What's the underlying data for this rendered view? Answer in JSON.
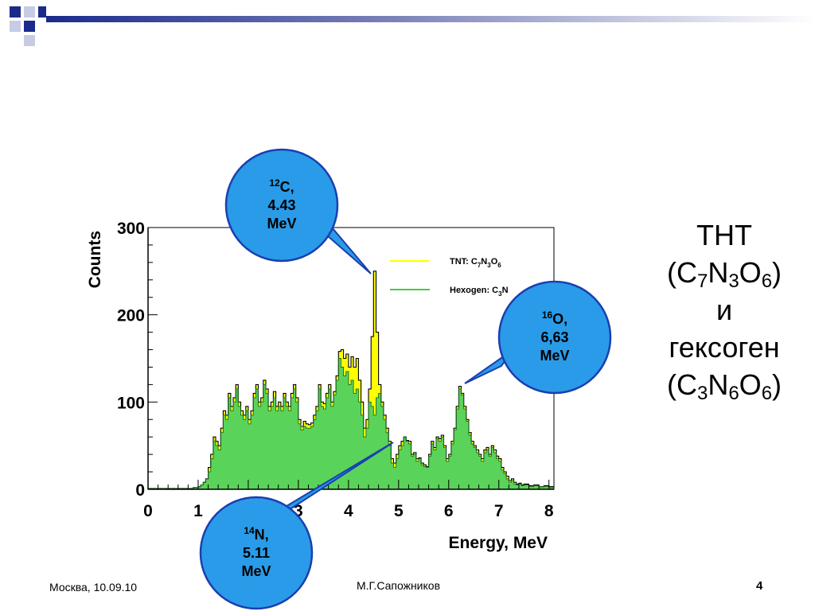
{
  "slide": {
    "heading": {
      "line1": "ТНТ",
      "line2_parts": [
        "(C",
        "7",
        "N",
        "3",
        "O",
        "6",
        ")"
      ],
      "line3": "и",
      "line4": "гексоген",
      "line5_parts": [
        "(C",
        "3",
        "N",
        "6",
        "O",
        "6",
        ")"
      ]
    },
    "footer": {
      "location_date": "Москва, 10.09.10",
      "author": "М.Г.Сапожников",
      "page_number": "4"
    },
    "callouts": [
      {
        "iso": "12",
        "element": "C,",
        "energy": "4.43",
        "unit": "MeV"
      },
      {
        "iso": "16",
        "element": "O,",
        "energy": "6,63",
        "unit": "MeV"
      },
      {
        "iso": "14",
        "element": "N,",
        "energy": "5.11",
        "unit": "MeV"
      }
    ],
    "colors": {
      "bubble_fill": "#2a9be8",
      "bubble_stroke": "#1a3fb0",
      "tnt_line": "#ffff00",
      "hexogen_fill": "#5ad35a",
      "hexogen_line": "#44cc44",
      "deco_navy": "#1a2b8c"
    }
  },
  "chart_data": {
    "type": "area",
    "xlabel": "Energy, MeV",
    "ylabel": "Counts",
    "xlim": [
      0,
      8.1
    ],
    "ylim": [
      0,
      300
    ],
    "xticks": [
      0,
      1,
      2,
      3,
      4,
      5,
      6,
      7,
      8
    ],
    "yticks": [
      0,
      100,
      200,
      300
    ],
    "grid": false,
    "legend_position": "top-right",
    "series": [
      {
        "name": "TNT: C7N3O6",
        "legend_label": "TNT: C",
        "legend_subs": [
          "7",
          "N",
          "3",
          "O",
          "6"
        ],
        "color": "#ffff00",
        "x": [
          0,
          0.5,
          0.9,
          1.0,
          1.05,
          1.1,
          1.15,
          1.2,
          1.25,
          1.3,
          1.35,
          1.4,
          1.45,
          1.5,
          1.55,
          1.6,
          1.65,
          1.7,
          1.75,
          1.8,
          1.85,
          1.9,
          1.95,
          2.0,
          2.05,
          2.1,
          2.15,
          2.2,
          2.25,
          2.3,
          2.35,
          2.4,
          2.45,
          2.5,
          2.55,
          2.6,
          2.65,
          2.7,
          2.75,
          2.8,
          2.85,
          2.9,
          2.95,
          3.0,
          3.05,
          3.1,
          3.15,
          3.2,
          3.25,
          3.3,
          3.35,
          3.4,
          3.45,
          3.5,
          3.55,
          3.6,
          3.65,
          3.7,
          3.75,
          3.8,
          3.85,
          3.9,
          3.95,
          4.0,
          4.05,
          4.1,
          4.15,
          4.2,
          4.25,
          4.3,
          4.35,
          4.4,
          4.45,
          4.5,
          4.55,
          4.6,
          4.65,
          4.7,
          4.75,
          4.8,
          4.85,
          4.9,
          4.95,
          5.0,
          5.05,
          5.1,
          5.15,
          5.2,
          5.25,
          5.3,
          5.35,
          5.4,
          5.45,
          5.5,
          5.55,
          5.6,
          5.65,
          5.7,
          5.75,
          5.8,
          5.85,
          5.9,
          5.95,
          6.0,
          6.05,
          6.1,
          6.15,
          6.2,
          6.25,
          6.3,
          6.35,
          6.4,
          6.45,
          6.5,
          6.55,
          6.6,
          6.65,
          6.7,
          6.75,
          6.8,
          6.85,
          6.9,
          6.95,
          7.0,
          7.05,
          7.1,
          7.15,
          7.2,
          7.25,
          7.3,
          7.35,
          7.4,
          7.45,
          7.5,
          7.6,
          7.7,
          7.8,
          7.9,
          8.0,
          8.1
        ],
        "values": [
          1,
          1,
          2,
          3,
          5,
          8,
          12,
          25,
          40,
          60,
          55,
          50,
          70,
          90,
          85,
          110,
          95,
          105,
          120,
          100,
          90,
          85,
          95,
          80,
          90,
          110,
          120,
          100,
          105,
          125,
          115,
          95,
          100,
          112,
          95,
          100,
          95,
          110,
          100,
          95,
          110,
          120,
          105,
          80,
          72,
          78,
          75,
          74,
          76,
          85,
          95,
          120,
          100,
          98,
          110,
          120,
          100,
          112,
          130,
          158,
          160,
          150,
          155,
          140,
          152,
          140,
          150,
          125,
          100,
          70,
          80,
          115,
          175,
          250,
          180,
          120,
          100,
          85,
          70,
          55,
          35,
          30,
          40,
          50,
          55,
          60,
          56,
          55,
          40,
          42,
          35,
          36,
          30,
          28,
          26,
          40,
          55,
          48,
          60,
          58,
          62,
          50,
          35,
          40,
          55,
          70,
          95,
          118,
          110,
          95,
          80,
          65,
          55,
          50,
          45,
          40,
          35,
          45,
          48,
          40,
          50,
          45,
          38,
          35,
          25,
          20,
          15,
          10,
          12,
          8,
          6,
          7,
          5,
          6,
          4,
          5,
          3,
          4,
          3,
          3
        ]
      },
      {
        "name": "Hexogen: C3N6O6",
        "legend_label": "Hexogen: C",
        "legend_subs": [
          "3",
          "N"
        ],
        "color": "#44cc44",
        "x": [
          0,
          0.5,
          0.9,
          1.0,
          1.05,
          1.1,
          1.15,
          1.2,
          1.25,
          1.3,
          1.35,
          1.4,
          1.45,
          1.5,
          1.55,
          1.6,
          1.65,
          1.7,
          1.75,
          1.8,
          1.85,
          1.9,
          1.95,
          2.0,
          2.05,
          2.1,
          2.15,
          2.2,
          2.25,
          2.3,
          2.35,
          2.4,
          2.45,
          2.5,
          2.55,
          2.6,
          2.65,
          2.7,
          2.75,
          2.8,
          2.85,
          2.9,
          2.95,
          3.0,
          3.05,
          3.1,
          3.15,
          3.2,
          3.25,
          3.3,
          3.35,
          3.4,
          3.45,
          3.5,
          3.55,
          3.6,
          3.65,
          3.7,
          3.75,
          3.8,
          3.85,
          3.9,
          3.95,
          4.0,
          4.05,
          4.1,
          4.15,
          4.2,
          4.25,
          4.3,
          4.35,
          4.4,
          4.45,
          4.5,
          4.55,
          4.6,
          4.65,
          4.7,
          4.75,
          4.8,
          4.85,
          4.9,
          4.95,
          5.0,
          5.05,
          5.1,
          5.15,
          5.2,
          5.25,
          5.3,
          5.35,
          5.4,
          5.45,
          5.5,
          5.55,
          5.6,
          5.65,
          5.7,
          5.75,
          5.8,
          5.85,
          5.9,
          5.95,
          6.0,
          6.05,
          6.1,
          6.15,
          6.2,
          6.25,
          6.3,
          6.35,
          6.4,
          6.45,
          6.5,
          6.55,
          6.6,
          6.65,
          6.7,
          6.75,
          6.8,
          6.85,
          6.9,
          6.95,
          7.0,
          7.05,
          7.1,
          7.15,
          7.2,
          7.25,
          7.3,
          7.35,
          7.4,
          7.45,
          7.5,
          7.6,
          7.7,
          7.8,
          7.9,
          8.0,
          8.1
        ],
        "values": [
          1,
          1,
          2,
          3,
          5,
          8,
          12,
          20,
          35,
          55,
          50,
          45,
          65,
          85,
          80,
          105,
          90,
          100,
          115,
          95,
          85,
          80,
          90,
          75,
          85,
          105,
          115,
          95,
          100,
          120,
          110,
          90,
          95,
          105,
          90,
          95,
          90,
          105,
          95,
          90,
          105,
          115,
          100,
          75,
          68,
          72,
          70,
          70,
          72,
          80,
          90,
          115,
          95,
          92,
          105,
          115,
          95,
          108,
          125,
          150,
          140,
          130,
          135,
          120,
          125,
          110,
          115,
          100,
          85,
          60,
          70,
          100,
          95,
          85,
          105,
          110,
          95,
          80,
          65,
          50,
          30,
          25,
          35,
          45,
          50,
          60,
          55,
          52,
          38,
          40,
          32,
          35,
          28,
          26,
          25,
          38,
          52,
          45,
          58,
          55,
          60,
          48,
          32,
          38,
          52,
          68,
          92,
          115,
          108,
          92,
          78,
          62,
          52,
          48,
          42,
          38,
          32,
          42,
          45,
          38,
          48,
          42,
          35,
          32,
          22,
          18,
          12,
          8,
          10,
          6,
          5,
          6,
          4,
          5,
          3,
          4,
          3,
          3,
          2,
          2
        ]
      }
    ]
  }
}
